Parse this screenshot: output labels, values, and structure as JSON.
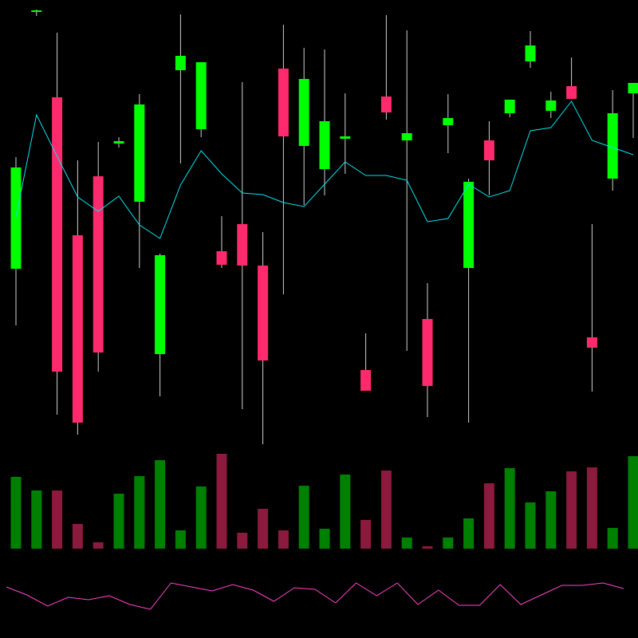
{
  "chart_data": [
    {
      "type": "candlestick",
      "ylim": [
        240,
        800
      ],
      "up_color": "#00ff00",
      "down_color": "#ff2a6d",
      "wick_color": "#d0d0d0",
      "open": [
        463,
        785,
        678,
        505,
        579,
        620,
        547,
        356,
        712,
        638,
        485,
        519,
        467,
        714,
        617,
        588,
        626,
        336,
        679,
        624,
        400,
        643,
        464,
        624,
        658,
        723,
        661,
        692,
        377,
        576,
        683
      ],
      "high": [
        603,
        788,
        759,
        599,
        622,
        628,
        682,
        482,
        782,
        722,
        529,
        697,
        509,
        769,
        740,
        738,
        683,
        382,
        781,
        762,
        445,
        682,
        576,
        648,
        675,
        761,
        685,
        728,
        519,
        687,
        696
      ],
      "low": [
        392,
        780,
        280,
        255,
        334,
        615,
        464,
        303,
        595,
        628,
        464,
        287,
        243,
        431,
        543,
        555,
        582,
        310,
        650,
        360,
        277,
        608,
        270,
        555,
        653,
        715,
        652,
        676,
        309,
        561,
        627
      ],
      "close": [
        590,
        787,
        334,
        270,
        358,
        623,
        669,
        480,
        730,
        722,
        468,
        467,
        348,
        629,
        701,
        648,
        629,
        310,
        659,
        633,
        316,
        652,
        572,
        599,
        675,
        743,
        674,
        676,
        364,
        658,
        696
      ],
      "series": [
        {
          "color": "#00e5ee",
          "values": [
            528,
            656,
            604,
            553,
            535,
            554,
            518,
            501,
            568,
            611,
            582,
            558,
            556,
            546,
            541,
            569,
            597,
            580,
            580,
            574,
            522,
            526,
            569,
            553,
            561,
            636,
            640,
            673,
            624,
            615,
            606
          ]
        }
      ]
    },
    {
      "type": "bar",
      "ylim": [
        0,
        128
      ],
      "up_color": "#008000",
      "down_color": "#8b1a3e",
      "values": [
        90,
        73,
        73,
        31,
        8,
        69,
        91,
        111,
        23,
        78,
        119,
        20,
        50,
        23,
        79,
        25,
        93,
        36,
        98,
        14,
        3,
        14,
        38,
        82,
        101,
        58,
        72,
        97,
        102,
        26,
        116
      ]
    },
    {
      "type": "line",
      "ylim": [
        0,
        100
      ],
      "color": "#ff44cc",
      "values": [
        64,
        54,
        40,
        51,
        48,
        53,
        42,
        36,
        69,
        64,
        59,
        67,
        60,
        46,
        63,
        61,
        44,
        69,
        53,
        69,
        42,
        60,
        41,
        41,
        67,
        42,
        54,
        66,
        66,
        69,
        62
      ]
    }
  ]
}
